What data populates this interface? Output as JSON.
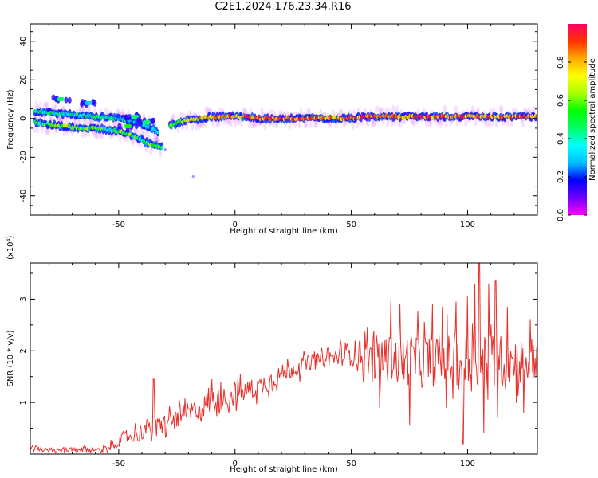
{
  "title": "C2E1.2024.176.23.34.R16",
  "chart_data": [
    {
      "type": "heatmap",
      "title": "C2E1.2024.176.23.34.R16",
      "xlabel": "Height of straight line (km)",
      "ylabel": "Frequency (Hz)",
      "xlim": [
        -88,
        130
      ],
      "ylim": [
        -50,
        49
      ],
      "xticks": [
        -50,
        0,
        50,
        100
      ],
      "yticks": [
        -40,
        -20,
        0,
        20,
        40
      ],
      "colorbar": {
        "label": "Normalized spectral amplitude",
        "range": [
          0,
          1
        ],
        "ticks": [
          0.0,
          0.2,
          0.4,
          0.6,
          0.8
        ],
        "tick_labels": [
          "0.0",
          "0.2",
          "0.4",
          "0.6",
          "0.8"
        ],
        "colormap": [
          "#ff00ff",
          "#7000ff",
          "#0000ff",
          "#00bfff",
          "#00ffff",
          "#00ff66",
          "#00ff00",
          "#aaff00",
          "#ffff00",
          "#ffaa00",
          "#ff3300",
          "#ff0066"
        ]
      },
      "ridges": [
        {
          "name": "",
          "points": [
            [
              -86,
              4,
              0.4
            ],
            [
              -80,
              3,
              0.45
            ],
            [
              -70,
              2,
              0.4
            ],
            [
              -60,
              1,
              0.4
            ],
            [
              -50,
              0,
              0.35
            ],
            [
              -42,
              -2,
              0.35
            ],
            [
              -36,
              -5,
              0.35
            ],
            [
              -33,
              -7,
              0.3
            ]
          ]
        },
        {
          "name": "",
          "points": [
            [
              -86,
              -2,
              0.5
            ],
            [
              -80,
              -3,
              0.5
            ],
            [
              -74,
              -4,
              0.6
            ],
            [
              -66,
              -5,
              0.55
            ],
            [
              -60,
              -5,
              0.5
            ],
            [
              -54,
              -6,
              0.45
            ],
            [
              -48,
              -7,
              0.55
            ],
            [
              -44,
              -9,
              0.55
            ],
            [
              -40,
              -11,
              0.5
            ],
            [
              -37,
              -13,
              0.5
            ],
            [
              -34,
              -14,
              0.55
            ],
            [
              -31,
              -15,
              0.5
            ]
          ]
        },
        {
          "name": "",
          "points": [
            [
              -28,
              -4,
              0.5
            ],
            [
              -24,
              -2,
              0.6
            ],
            [
              -20,
              -1,
              0.65
            ],
            [
              -15,
              0,
              0.75
            ],
            [
              -10,
              1,
              0.8
            ],
            [
              -5,
              1,
              0.8
            ],
            [
              0,
              1,
              0.85
            ],
            [
              5,
              1,
              0.85
            ],
            [
              10,
              0,
              0.8
            ],
            [
              15,
              0,
              0.85
            ],
            [
              20,
              0,
              0.85
            ],
            [
              25,
              0,
              0.85
            ],
            [
              30,
              0,
              0.85
            ],
            [
              35,
              0,
              0.85
            ],
            [
              40,
              0,
              0.8
            ],
            [
              45,
              0,
              0.8
            ],
            [
              50,
              0,
              0.9
            ],
            [
              55,
              1,
              0.85
            ],
            [
              60,
              1,
              0.85
            ],
            [
              65,
              1,
              0.8
            ],
            [
              70,
              1,
              0.85
            ],
            [
              75,
              1,
              0.85
            ],
            [
              80,
              1,
              0.9
            ],
            [
              85,
              1,
              0.85
            ],
            [
              90,
              1,
              0.85
            ],
            [
              95,
              1,
              0.85
            ],
            [
              100,
              1,
              0.85
            ],
            [
              105,
              1,
              0.8
            ],
            [
              110,
              1,
              0.85
            ],
            [
              115,
              1,
              0.85
            ],
            [
              120,
              1,
              0.85
            ],
            [
              125,
              1,
              0.85
            ],
            [
              130,
              1,
              0.85
            ]
          ]
        }
      ],
      "blobs": [
        [
          -75,
          10,
          0.45
        ],
        [
          -63,
          8,
          0.3
        ],
        [
          -43,
          1,
          0.45
        ],
        [
          -38,
          -2,
          0.45
        ],
        [
          -46,
          -4,
          0.55
        ]
      ],
      "outliers": [
        [
          -18,
          -30,
          0.1
        ],
        [
          -30,
          -16,
          0.2
        ]
      ]
    },
    {
      "type": "line",
      "xlabel": "Height of straight line (km)",
      "ylabel": "SNR (10 * v/v)",
      "y_exponent": "(x10⁴)",
      "xlim": [
        -88,
        130
      ],
      "ylim": [
        0,
        3.7
      ],
      "xticks": [
        -50,
        0,
        50,
        100
      ],
      "yticks": [
        1,
        2,
        3
      ],
      "series": [
        {
          "color": "#e8302c",
          "trend": [
            [
              -88,
              0.15
            ],
            [
              -80,
              0.05
            ],
            [
              -70,
              0.08
            ],
            [
              -60,
              0.08
            ],
            [
              -54,
              0.12
            ],
            [
              -48,
              0.3
            ],
            [
              -42,
              0.4
            ],
            [
              -38,
              0.5
            ],
            [
              -35,
              0.5
            ],
            [
              -30,
              0.6
            ],
            [
              -20,
              0.8
            ],
            [
              -10,
              1.0
            ],
            [
              0,
              1.15
            ],
            [
              10,
              1.3
            ],
            [
              20,
              1.55
            ],
            [
              30,
              1.75
            ],
            [
              40,
              1.85
            ],
            [
              50,
              1.95
            ],
            [
              60,
              1.9
            ],
            [
              70,
              1.8
            ],
            [
              80,
              1.85
            ],
            [
              90,
              1.8
            ],
            [
              100,
              1.8
            ],
            [
              110,
              1.8
            ],
            [
              120,
              1.8
            ],
            [
              130,
              1.85
            ]
          ],
          "spread": [
            [
              -88,
              0.08
            ],
            [
              -60,
              0.08
            ],
            [
              -50,
              0.15
            ],
            [
              -40,
              0.3
            ],
            [
              -20,
              0.35
            ],
            [
              0,
              0.35
            ],
            [
              20,
              0.3
            ],
            [
              40,
              0.25
            ],
            [
              50,
              0.4
            ],
            [
              60,
              0.7
            ],
            [
              70,
              0.8
            ],
            [
              80,
              0.85
            ],
            [
              90,
              0.9
            ],
            [
              100,
              1.0
            ],
            [
              110,
              0.9
            ],
            [
              120,
              0.8
            ],
            [
              130,
              0.7
            ]
          ],
          "peaks": [
            [
              -35,
              1.45
            ],
            [
              -10,
              1.45
            ],
            [
              -6,
              1.4
            ],
            [
              40,
              2.05
            ],
            [
              57,
              2.45
            ],
            [
              67,
              3.0
            ],
            [
              71,
              2.9
            ],
            [
              85,
              2.9
            ],
            [
              89,
              2.85
            ],
            [
              95,
              2.95
            ],
            [
              100,
              3.05
            ],
            [
              103,
              3.3
            ],
            [
              105,
              3.7
            ],
            [
              109,
              3.3
            ],
            [
              112,
              3.35
            ],
            [
              117,
              2.85
            ],
            [
              127,
              2.6
            ]
          ],
          "dips": [
            [
              62,
              0.9
            ],
            [
              75,
              0.55
            ],
            [
              98,
              0.2
            ],
            [
              107,
              0.4
            ],
            [
              113,
              0.7
            ],
            [
              124,
              0.8
            ]
          ]
        }
      ]
    }
  ]
}
